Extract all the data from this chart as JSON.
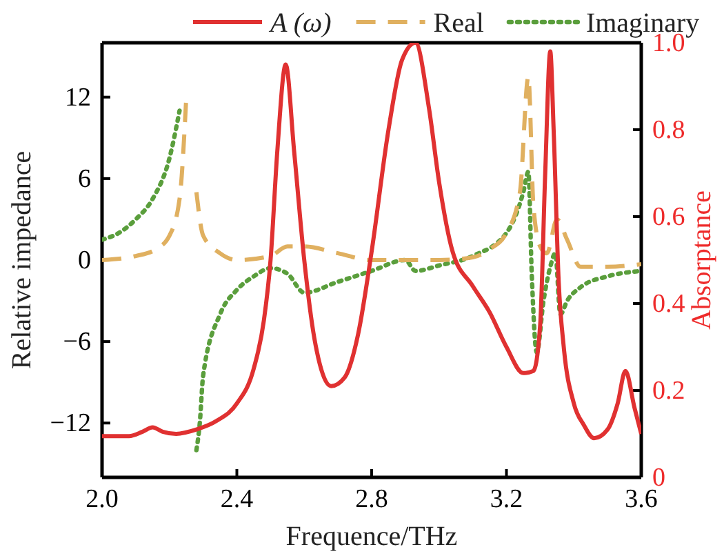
{
  "chart_data": {
    "type": "line",
    "xlabel": "Frequence/THz",
    "ylabel": "Relative impedance",
    "y2label": "Absorptance",
    "legend": "top",
    "marker": "none",
    "grid": false,
    "xlim": [
      2.0,
      3.6
    ],
    "xticks": [
      {
        "value": 2,
        "label": "2.0"
      },
      2.4,
      2.8,
      3.2,
      3.6
    ],
    "ylim": [
      -16,
      16
    ],
    "yticks": [
      -12,
      -6,
      0,
      6,
      12
    ],
    "y2lim": [
      0,
      1
    ],
    "y2ticks": [
      {
        "value": 0,
        "label": "0"
      },
      0.2,
      0.4,
      0.6,
      0.8,
      {
        "value": 1,
        "label": "1.0"
      }
    ],
    "series": [
      {
        "name": "A (ω)",
        "color": "#e03131",
        "axis": "y2",
        "line_style": "solid",
        "x": [
          2.0,
          2.08,
          2.12,
          2.15,
          2.18,
          2.22,
          2.28,
          2.34,
          2.4,
          2.45,
          2.48,
          2.5,
          2.52,
          2.545,
          2.57,
          2.6,
          2.63,
          2.68,
          2.72,
          2.76,
          2.8,
          2.85,
          2.89,
          2.93,
          2.97,
          3.0,
          3.04,
          3.1,
          3.15,
          3.2,
          3.25,
          3.28,
          3.3,
          3.315,
          3.33,
          3.34,
          3.355,
          3.37,
          3.4,
          3.43,
          3.46,
          3.5,
          3.53,
          3.553,
          3.58,
          3.6
        ],
        "values": [
          0.095,
          0.095,
          0.105,
          0.115,
          0.105,
          0.1,
          0.11,
          0.13,
          0.17,
          0.25,
          0.36,
          0.5,
          0.75,
          0.95,
          0.75,
          0.5,
          0.32,
          0.21,
          0.23,
          0.33,
          0.52,
          0.8,
          0.96,
          1.0,
          0.85,
          0.68,
          0.52,
          0.44,
          0.38,
          0.3,
          0.24,
          0.245,
          0.35,
          0.7,
          0.98,
          0.8,
          0.45,
          0.3,
          0.17,
          0.12,
          0.09,
          0.11,
          0.17,
          0.245,
          0.16,
          0.1
        ]
      },
      {
        "name": "Real",
        "color": "#e0b060",
        "axis": "y",
        "line_style": "dashed",
        "x": [
          2.0,
          2.1,
          2.16,
          2.2,
          2.23,
          2.25,
          2.265,
          2.28,
          2.3,
          2.35,
          2.4,
          2.5,
          2.55,
          2.6,
          2.7,
          2.8,
          2.9,
          3.0,
          3.1,
          3.15,
          3.2,
          3.24,
          3.265,
          3.28,
          3.3,
          3.32,
          3.35,
          3.38,
          3.42,
          3.5,
          3.6
        ],
        "values": [
          0,
          0.3,
          0.8,
          1.8,
          4.5,
          12,
          null,
          5,
          1.8,
          0.5,
          0,
          0.3,
          1,
          1,
          0.5,
          0,
          0,
          0,
          0.2,
          0.8,
          2,
          5,
          13.5,
          4,
          1,
          0.5,
          3,
          1.5,
          -0.5,
          -0.5,
          -0.3
        ]
      },
      {
        "name": "Imaginary",
        "color": "#5a9e3c",
        "axis": "y",
        "line_style": "dotted",
        "x": [
          2.0,
          2.05,
          2.1,
          2.15,
          2.2,
          2.23,
          2.25,
          2.258,
          2.262,
          2.27,
          2.28,
          2.29,
          2.3,
          2.35,
          2.4,
          2.45,
          2.5,
          2.55,
          2.6,
          2.7,
          2.8,
          2.9,
          2.93,
          3.0,
          3.1,
          3.2,
          3.25,
          3.265,
          3.275,
          3.29,
          3.31,
          3.33,
          3.345,
          3.36,
          3.38,
          3.42,
          3.5,
          3.6
        ],
        "values": [
          1.5,
          2,
          3,
          4.5,
          7.5,
          11,
          null,
          null,
          null,
          null,
          -14,
          -12,
          -8.5,
          -4,
          -2.2,
          -1.2,
          -0.6,
          -1,
          -2.4,
          -1.6,
          -0.8,
          0,
          -0.8,
          -0.4,
          0.3,
          2,
          5,
          6.5,
          -1,
          -6.8,
          -3,
          -0.5,
          0.5,
          -4,
          -3,
          -2,
          -1.2,
          -0.8
        ]
      }
    ]
  }
}
